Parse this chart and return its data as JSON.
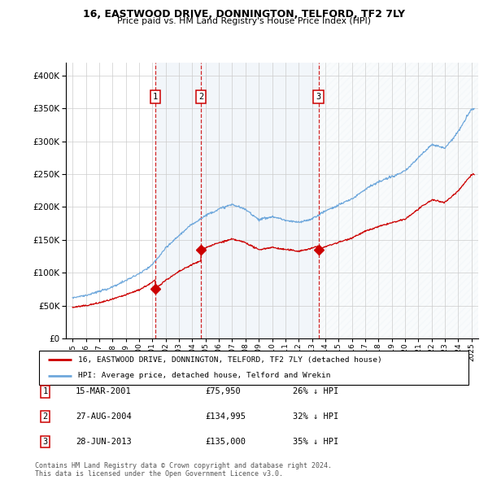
{
  "title": "16, EASTWOOD DRIVE, DONNINGTON, TELFORD, TF2 7LY",
  "subtitle": "Price paid vs. HM Land Registry's House Price Index (HPI)",
  "legend_line1": "16, EASTWOOD DRIVE, DONNINGTON, TELFORD, TF2 7LY (detached house)",
  "legend_line2": "HPI: Average price, detached house, Telford and Wrekin",
  "footnote1": "Contains HM Land Registry data © Crown copyright and database right 2024.",
  "footnote2": "This data is licensed under the Open Government Licence v3.0.",
  "transactions": [
    {
      "num": 1,
      "date": "15-MAR-2001",
      "price": "£75,950",
      "pct": "26% ↓ HPI"
    },
    {
      "num": 2,
      "date": "27-AUG-2004",
      "price": "£134,995",
      "pct": "32% ↓ HPI"
    },
    {
      "num": 3,
      "date": "28-JUN-2013",
      "price": "£135,000",
      "pct": "35% ↓ HPI"
    }
  ],
  "sale_dates_num": [
    2001.204,
    2004.653,
    2013.486
  ],
  "sale_prices": [
    75950,
    134995,
    135000
  ],
  "hpi_color": "#6fa8dc",
  "price_color": "#cc0000",
  "vline_color": "#cc0000",
  "bg_shade_color": "#dce6f1",
  "hatch_color": "#cccccc",
  "ylim": [
    0,
    420000
  ],
  "yticks": [
    0,
    50000,
    100000,
    150000,
    200000,
    250000,
    300000,
    350000,
    400000
  ],
  "xlim": [
    1994.5,
    2025.5
  ]
}
